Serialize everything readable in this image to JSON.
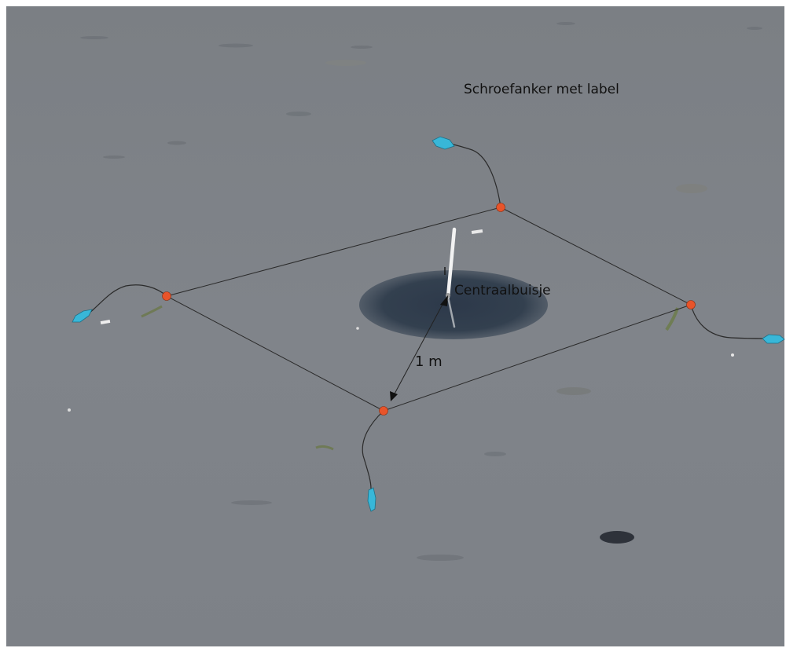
{
  "labels": {
    "anchor_label": "Schroefanker met label",
    "center_tube": "Centraalbuisje",
    "distance": "1 m"
  },
  "colors": {
    "sand": "#7d8186",
    "wet_patch": "#2f3c4e",
    "anchor_marker": "#e8542a",
    "label_tag": "#38b7d8",
    "rope": "#2b2b2b"
  }
}
